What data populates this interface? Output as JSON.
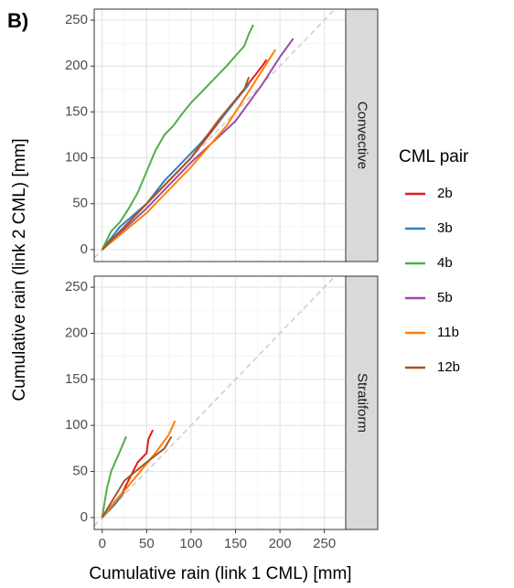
{
  "chart_data": {
    "type": "line",
    "panel_label": "B)",
    "xlabel": "Cumulative rain (link 1 CML) [mm]",
    "ylabel": "Cumulative rain (link 2 CML) [mm]",
    "legend_title": "CML pair",
    "xlim": [
      -9,
      274
    ],
    "ylim": [
      -13,
      262
    ],
    "xticks": [
      0,
      50,
      100,
      150,
      200,
      250
    ],
    "yticks": [
      0,
      50,
      100,
      150,
      200,
      250
    ],
    "grid": true,
    "legend_position": "right",
    "series": [
      {
        "name": "2b",
        "color": "#e41a1c"
      },
      {
        "name": "3b",
        "color": "#377eb8"
      },
      {
        "name": "4b",
        "color": "#4daf4a"
      },
      {
        "name": "5b",
        "color": "#984ea3"
      },
      {
        "name": "11b",
        "color": "#ff7f00"
      },
      {
        "name": "12b",
        "color": "#a65628"
      }
    ],
    "facets": [
      {
        "label": "Convective",
        "lines": [
          {
            "x": [
              0,
              20,
              50,
              80,
              100,
              120,
              140,
              160,
              180,
              185
            ],
            "values": [
              0,
              20,
              50,
              80,
              100,
              125,
              150,
              175,
              200,
              207
            ]
          },
          {
            "x": [
              0,
              20,
              50,
              70,
              90,
              110,
              140,
              165
            ],
            "values": [
              0,
              25,
              50,
              75,
              95,
              115,
              150,
              180
            ]
          },
          {
            "x": [
              0,
              10,
              20,
              30,
              40,
              50,
              60,
              70,
              80,
              90,
              100,
              120,
              140,
              160,
              165,
              170
            ],
            "values": [
              0,
              20,
              30,
              45,
              62,
              85,
              108,
              125,
              135,
              148,
              160,
              180,
              200,
              222,
              235,
              245
            ]
          },
          {
            "x": [
              0,
              50,
              100,
              150,
              180,
              200,
              215
            ],
            "values": [
              0,
              45,
              95,
              140,
              180,
              210,
              230
            ]
          },
          {
            "x": [
              0,
              50,
              100,
              140,
              170,
              195
            ],
            "values": [
              0,
              40,
              90,
              135,
              180,
              218
            ]
          },
          {
            "x": [
              0,
              50,
              100,
              130,
              160,
              165
            ],
            "values": [
              0,
              50,
              100,
              140,
              175,
              188
            ]
          }
        ]
      },
      {
        "label": "Stratiform",
        "lines": [
          {
            "x": [
              0,
              20,
              40,
              50,
              52,
              57
            ],
            "values": [
              0,
              22,
              60,
              70,
              85,
              95
            ]
          },
          {
            "x": [
              0,
              15,
              25
            ],
            "values": [
              0,
              15,
              28
            ]
          },
          {
            "x": [
              0,
              5,
              10,
              20,
              27
            ],
            "values": [
              0,
              30,
              50,
              72,
              88
            ]
          },
          {
            "x": [
              0,
              15,
              28
            ],
            "values": [
              0,
              18,
              33
            ]
          },
          {
            "x": [
              0,
              30,
              60,
              75,
              82
            ],
            "values": [
              0,
              35,
              70,
              90,
              105
            ]
          },
          {
            "x": [
              0,
              25,
              50,
              70,
              78
            ],
            "values": [
              0,
              40,
              60,
              75,
              88
            ]
          }
        ]
      }
    ]
  }
}
